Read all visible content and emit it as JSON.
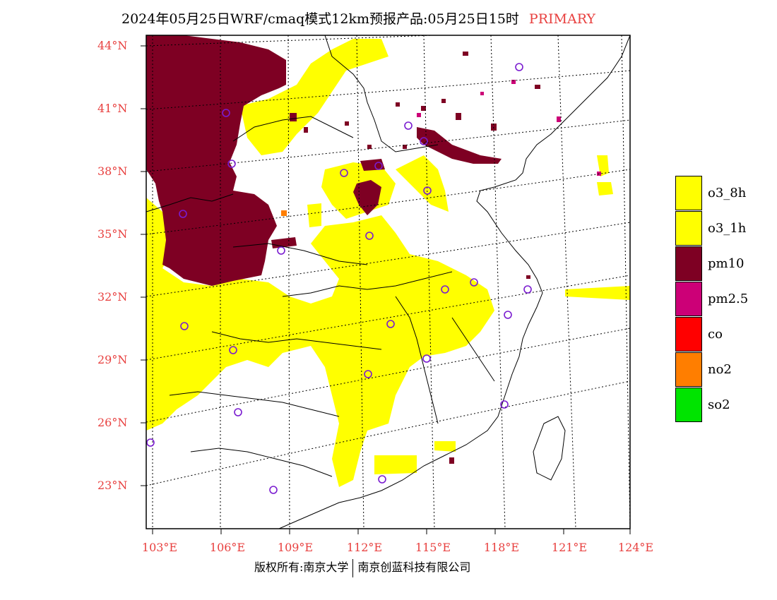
{
  "title": "2024年05月25日WRF/cmaq模式12km预报产品:05月25日15时",
  "title_tag": "PRIMARY",
  "lat_labels": [
    "44°N",
    "41°N",
    "38°N",
    "35°N",
    "32°N",
    "29°N",
    "26°N",
    "23°N"
  ],
  "lon_labels": [
    "103°E",
    "106°E",
    "109°E",
    "112°E",
    "115°E",
    "118°E",
    "121°E",
    "124°E"
  ],
  "legend": [
    {
      "label": "o3_8h",
      "color": "#ffff00"
    },
    {
      "label": "o3_1h",
      "color": "#ffff00"
    },
    {
      "label": "pm10",
      "color": "#7e0023"
    },
    {
      "label": "pm2.5",
      "color": "#cc0077"
    },
    {
      "label": "co",
      "color": "#ff0000"
    },
    {
      "label": "no2",
      "color": "#ff7e00"
    },
    {
      "label": "so2",
      "color": "#00e400"
    }
  ],
  "footer": {
    "left": "版权所有:南京大学",
    "right": "南京创蓝科技有限公司"
  }
}
